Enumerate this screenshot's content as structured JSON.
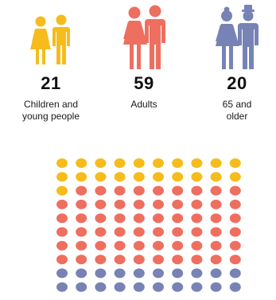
{
  "chart_data": {
    "type": "waffle",
    "total": 100,
    "categories": [
      {
        "count": "21",
        "value": 21,
        "label": "Children and\nyoung people",
        "color": "#F5BC1C",
        "icon": "child-couple-icon"
      },
      {
        "count": "59",
        "value": 59,
        "label": "Adults",
        "color": "#EE6F5F",
        "icon": "adult-couple-icon"
      },
      {
        "count": "20",
        "value": 20,
        "label": "65 and\nolder",
        "color": "#7783B5",
        "icon": "older-couple-icon"
      }
    ],
    "grid": {
      "columns": 10,
      "rows": 10,
      "fill_order": "row-major-from-top"
    }
  }
}
